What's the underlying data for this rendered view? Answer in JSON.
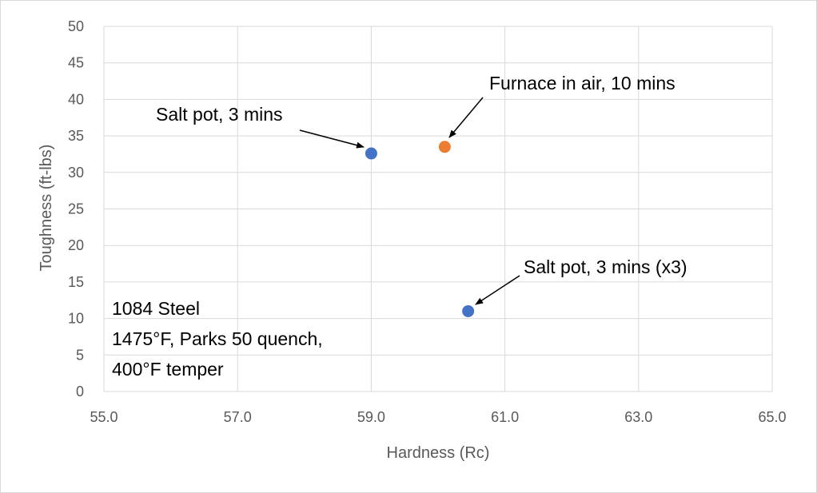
{
  "chart_data": {
    "type": "scatter",
    "xlabel": "Hardness (Rc)",
    "ylabel": "Toughness (ft-lbs)",
    "xlim": [
      55.0,
      65.0
    ],
    "ylim": [
      0,
      50
    ],
    "x_ticks": [
      "55.0",
      "57.0",
      "59.0",
      "61.0",
      "63.0",
      "65.0"
    ],
    "y_ticks": [
      "0",
      "5",
      "10",
      "15",
      "20",
      "25",
      "30",
      "35",
      "40",
      "45",
      "50"
    ],
    "grid": true,
    "series": [
      {
        "label": "Salt pot, 3 mins",
        "color": "#4472c4",
        "x": 59.0,
        "y": 32.6
      },
      {
        "label": "Furnace in air, 10 mins",
        "color": "#ed7d31",
        "x": 60.1,
        "y": 33.5
      },
      {
        "label": "Salt pot, 3 mins (x3)",
        "color": "#4472c4",
        "x": 60.45,
        "y": 11.0
      }
    ],
    "note_lines": [
      "1084 Steel",
      "1475°F, Parks 50 quench,",
      "400°F temper"
    ],
    "grid_color": "#d9d9d9"
  }
}
